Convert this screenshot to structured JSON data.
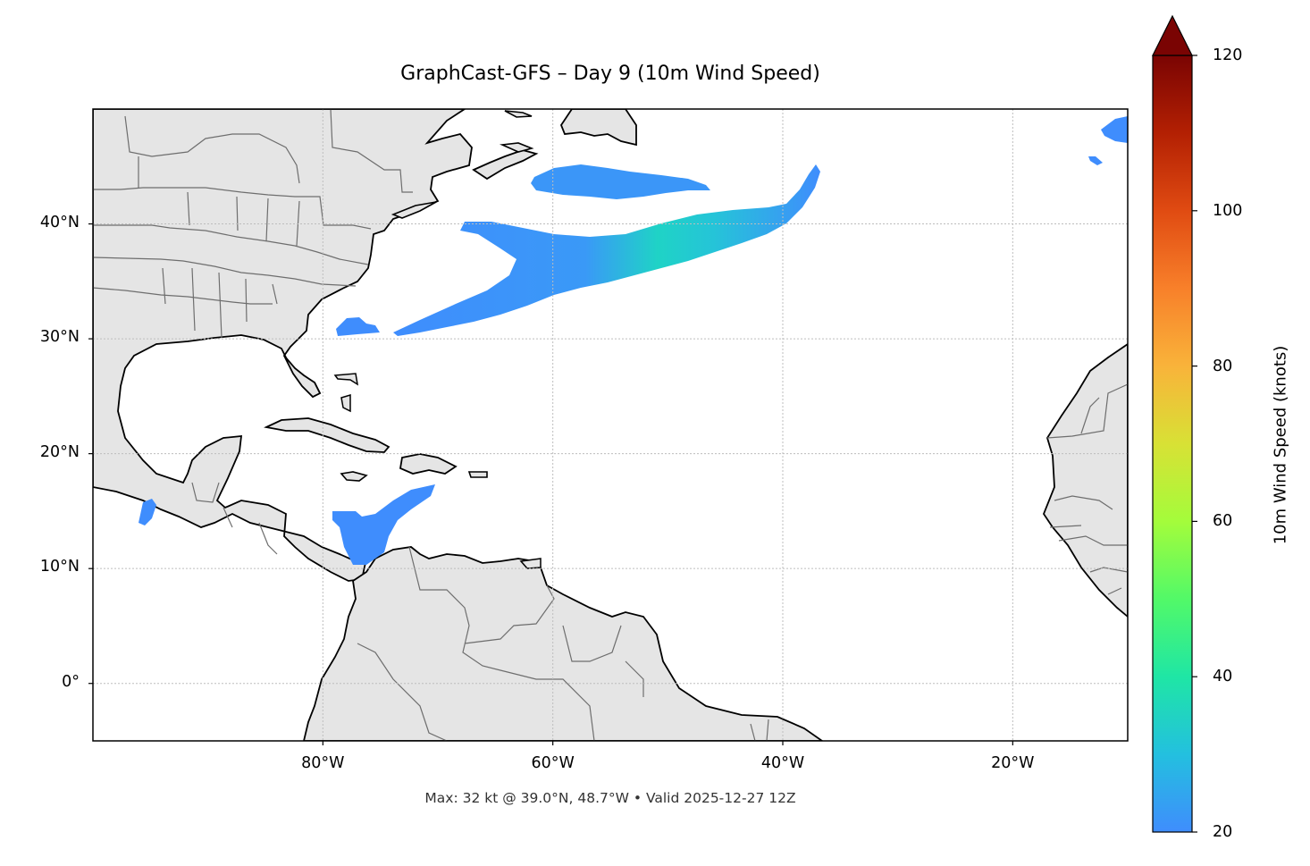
{
  "title": "GraphCast-GFS – Day 9 (10m Wind Speed)",
  "footer": "Max: 32 kt @ 39.0°N, 48.7°W • Valid 2025-12-27 12Z",
  "map": {
    "extent": {
      "lon_min": -100,
      "lon_max": -10,
      "lat_min": -5,
      "lat_max": 50
    },
    "lat_ticks": [
      {
        "value": 40,
        "label": "40°N"
      },
      {
        "value": 30,
        "label": "30°N"
      },
      {
        "value": 20,
        "label": "20°N"
      },
      {
        "value": 10,
        "label": "10°N"
      },
      {
        "value": 0,
        "label": "0°"
      }
    ],
    "lon_ticks": [
      {
        "value": -80,
        "label": "80°W"
      },
      {
        "value": -60,
        "label": "60°W"
      },
      {
        "value": -40,
        "label": "40°W"
      },
      {
        "value": -20,
        "label": "20°W"
      }
    ],
    "gridlines": true,
    "land_color": "#e5e5e5",
    "ocean_color": "#ffffff",
    "coastline_color": "#000000",
    "border_color": "#6e6e6e"
  },
  "colorbar": {
    "label": "10m Wind Speed (knots)",
    "min": 20,
    "max": 120,
    "extend": "max",
    "colormap": "turbo",
    "ticks": [
      {
        "value": 120,
        "label": "120"
      },
      {
        "value": 100,
        "label": "100"
      },
      {
        "value": 80,
        "label": "80"
      },
      {
        "value": 60,
        "label": "60"
      },
      {
        "value": 40,
        "label": "40"
      },
      {
        "value": 20,
        "label": "20"
      }
    ],
    "stops": [
      "#3f8dfd",
      "#23c0df",
      "#1fe6a5",
      "#52f968",
      "#a4fc3b",
      "#d8e135",
      "#f9b33a",
      "#f8802a",
      "#e04b12",
      "#b32003",
      "#7a0403"
    ]
  },
  "max_wind": {
    "speed_kt": 32,
    "lat": 39.0,
    "lon": -48.7
  },
  "valid_time": "2025-12-27 12Z"
}
